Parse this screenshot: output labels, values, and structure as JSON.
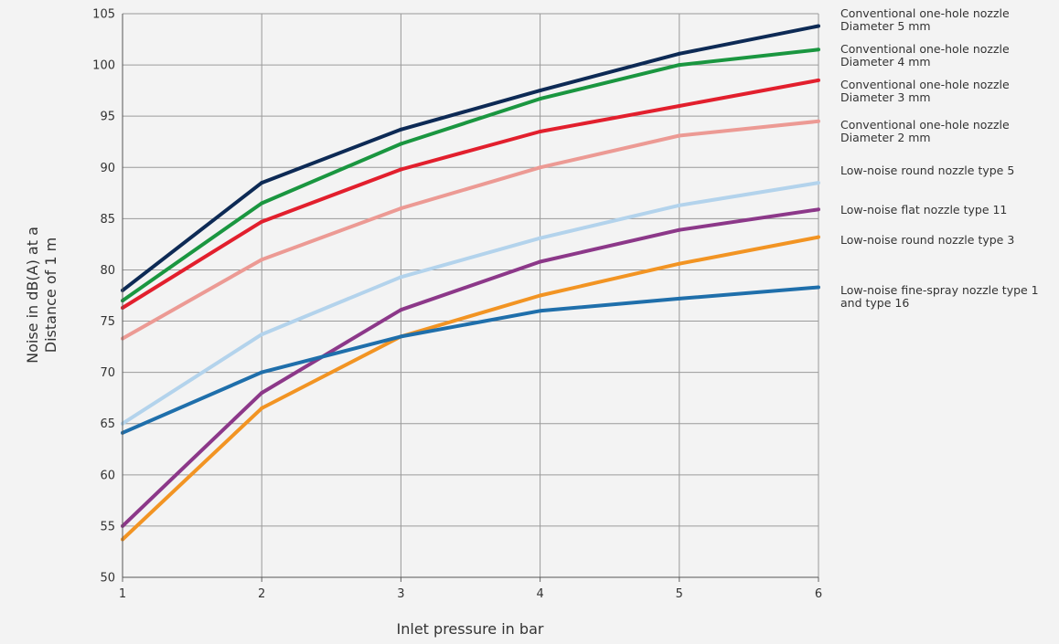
{
  "chart_data": {
    "type": "line",
    "title": "",
    "xlabel": "Inlet pressure in bar",
    "ylabel_lines": [
      "Noise in dB(A) at a",
      "Distance of 1 m"
    ],
    "x": [
      1,
      2,
      3,
      4,
      5,
      6
    ],
    "x_ticks": [
      "1",
      "2",
      "3",
      "4",
      "5",
      "6"
    ],
    "y_ticks": [
      "50",
      "55",
      "60",
      "65",
      "70",
      "75",
      "80",
      "85",
      "90",
      "95",
      "100",
      "105"
    ],
    "xlim": [
      1,
      6
    ],
    "ylim": [
      50,
      105
    ],
    "grid": true,
    "legend_placement": "right",
    "series": [
      {
        "name_lines": [
          "Conventional one-hole nozzle",
          "Diameter 5 mm"
        ],
        "color": "#0d2a55",
        "values": [
          78.0,
          88.5,
          93.7,
          97.5,
          101.1,
          103.8
        ]
      },
      {
        "name_lines": [
          "Conventional one-hole nozzle",
          "Diameter 4 mm"
        ],
        "color": "#1a9640",
        "values": [
          77.0,
          86.5,
          92.3,
          96.7,
          100.0,
          101.5
        ]
      },
      {
        "name_lines": [
          "Conventional one-hole nozzle",
          "Diameter 3 mm"
        ],
        "color": "#e21f2d",
        "values": [
          76.3,
          84.7,
          89.8,
          93.5,
          96.0,
          98.5
        ]
      },
      {
        "name_lines": [
          "Conventional one-hole nozzle",
          "Diameter 2 mm"
        ],
        "color": "#ec9a94",
        "values": [
          73.3,
          81.0,
          86.0,
          90.0,
          93.1,
          94.5
        ]
      },
      {
        "name_lines": [
          "Low-noise round nozzle type 5"
        ],
        "color": "#b3d3ec",
        "values": [
          65.0,
          73.7,
          79.3,
          83.1,
          86.3,
          88.5
        ]
      },
      {
        "name_lines": [
          "Low-noise flat nozzle type 11"
        ],
        "color": "#8c3889",
        "values": [
          55.0,
          68.0,
          76.1,
          80.8,
          83.9,
          85.9
        ]
      },
      {
        "name_lines": [
          "Low-noise round nozzle type 3"
        ],
        "color": "#f29423",
        "values": [
          53.7,
          66.5,
          73.5,
          77.5,
          80.6,
          83.2
        ]
      },
      {
        "name_lines": [
          "Low-noise fine-spray nozzle type 1",
          "and type 16"
        ],
        "color": "#1f6fab",
        "values": [
          64.1,
          70.0,
          73.5,
          76.0,
          77.2,
          78.3
        ]
      }
    ]
  }
}
